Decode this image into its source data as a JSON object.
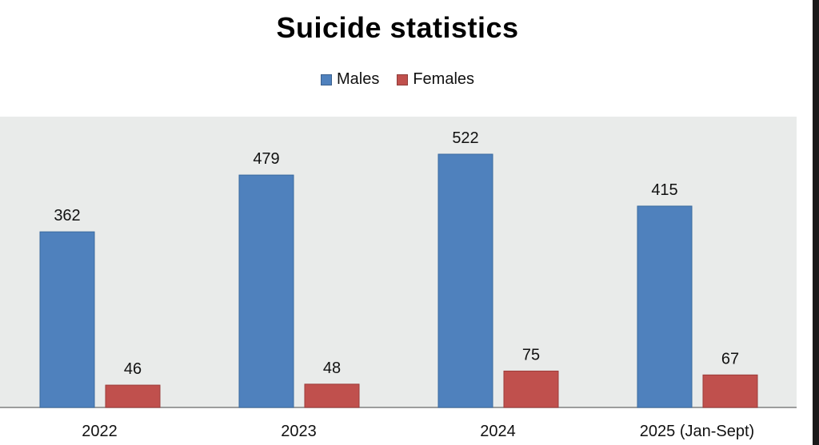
{
  "chart_data": {
    "type": "bar",
    "title": "Suicide statistics",
    "categories": [
      "2022",
      "2023",
      "2024",
      "2025 (Jan-Sept)"
    ],
    "series": [
      {
        "name": "Males",
        "values": [
          362,
          479,
          522,
          415
        ],
        "color": "#4f81bd"
      },
      {
        "name": "Females",
        "values": [
          46,
          48,
          75,
          67
        ],
        "color": "#c0504d"
      }
    ],
    "xlabel": "",
    "ylabel": "",
    "ylim": [
      0,
      600
    ],
    "legend_position": "top-center",
    "grid": false,
    "plot_background": "#e9ebea"
  }
}
